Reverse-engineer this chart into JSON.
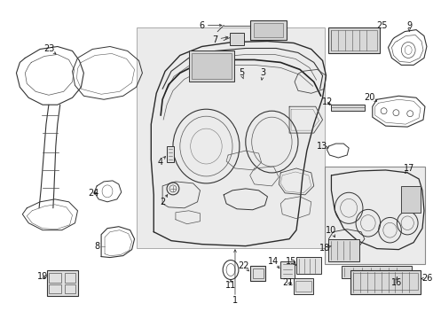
{
  "bg": "#ffffff",
  "fw": 4.89,
  "fh": 3.6,
  "dpi": 100,
  "lc": "#1a1a1a",
  "fc": "#d8d8d8"
}
